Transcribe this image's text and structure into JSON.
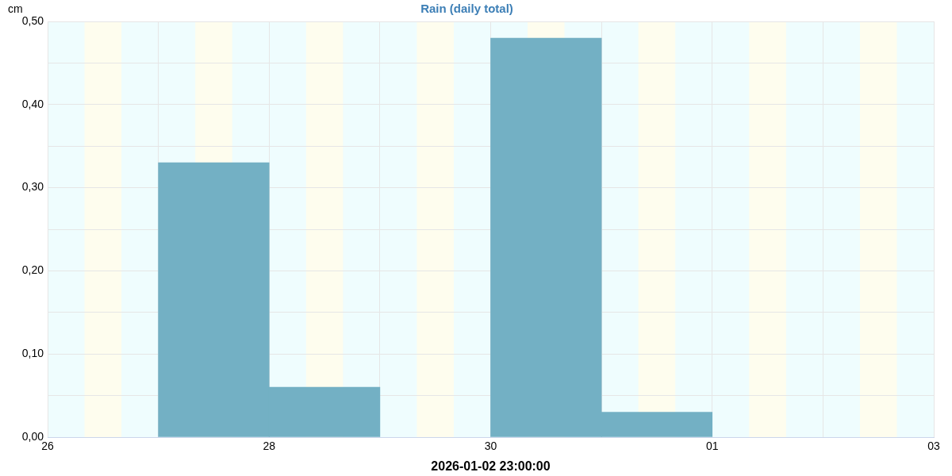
{
  "chart_data": {
    "type": "bar",
    "title": "Rain (daily total)",
    "xlabel": "2026-01-02 23:00:00",
    "ylabel": "cm",
    "x": [
      "2025-12-27T12:00",
      "2025-12-28T12:00",
      "2025-12-30T12:00",
      "2025-12-31T12:00"
    ],
    "values": [
      0.33,
      0.06,
      0.48,
      0.03
    ],
    "color": "#73b0c4",
    "xlim": [
      "2025-12-26",
      "2026-01-03"
    ],
    "xticks": [
      {
        "value": "2025-12-26",
        "label": "26"
      },
      {
        "value": "2025-12-27",
        "label": null
      },
      {
        "value": "2025-12-28",
        "label": "28"
      },
      {
        "value": "2025-12-29",
        "label": null
      },
      {
        "value": "2025-12-30",
        "label": "30"
      },
      {
        "value": "2025-12-31",
        "label": null
      },
      {
        "value": "2026-01-01",
        "label": "01"
      },
      {
        "value": "2026-01-02",
        "label": null
      },
      {
        "value": "2026-01-03",
        "label": "03"
      }
    ],
    "ylim": [
      0,
      0.5
    ],
    "yticks": [
      {
        "value": 0,
        "label": "0,00"
      },
      {
        "value": 0.05,
        "label": null
      },
      {
        "value": 0.1,
        "label": "0,10"
      },
      {
        "value": 0.15,
        "label": null
      },
      {
        "value": 0.2,
        "label": "0,20"
      },
      {
        "value": 0.25,
        "label": null
      },
      {
        "value": 0.3,
        "label": "0,30"
      },
      {
        "value": 0.35,
        "label": null
      },
      {
        "value": 0.4,
        "label": "0,40"
      },
      {
        "value": 0.45,
        "label": null
      },
      {
        "value": 0.5,
        "label": "0,50"
      }
    ],
    "grid": true,
    "bands": [
      {
        "axis": "x",
        "from": "2025-12-26T08:00",
        "to": "2025-12-26T16:00",
        "color": "#fefdee"
      },
      {
        "axis": "x",
        "from": "2025-12-27T08:00",
        "to": "2025-12-27T16:00",
        "color": "#fefdee"
      },
      {
        "axis": "x",
        "from": "2025-12-28T08:00",
        "to": "2025-12-28T16:00",
        "color": "#fefdee"
      },
      {
        "axis": "x",
        "from": "2025-12-29T08:00",
        "to": "2025-12-29T16:00",
        "color": "#fefdee"
      },
      {
        "axis": "x",
        "from": "2025-12-30T08:00",
        "to": "2025-12-30T16:00",
        "color": "#fefdee"
      },
      {
        "axis": "x",
        "from": "2025-12-31T08:00",
        "to": "2025-12-31T16:00",
        "color": "#fefdee"
      },
      {
        "axis": "x",
        "from": "2026-01-01T08:00",
        "to": "2026-01-01T16:00",
        "color": "#fefdee"
      },
      {
        "axis": "x",
        "from": "2026-01-02T08:00",
        "to": "2026-01-02T16:00",
        "color": "#fefdee"
      }
    ]
  }
}
